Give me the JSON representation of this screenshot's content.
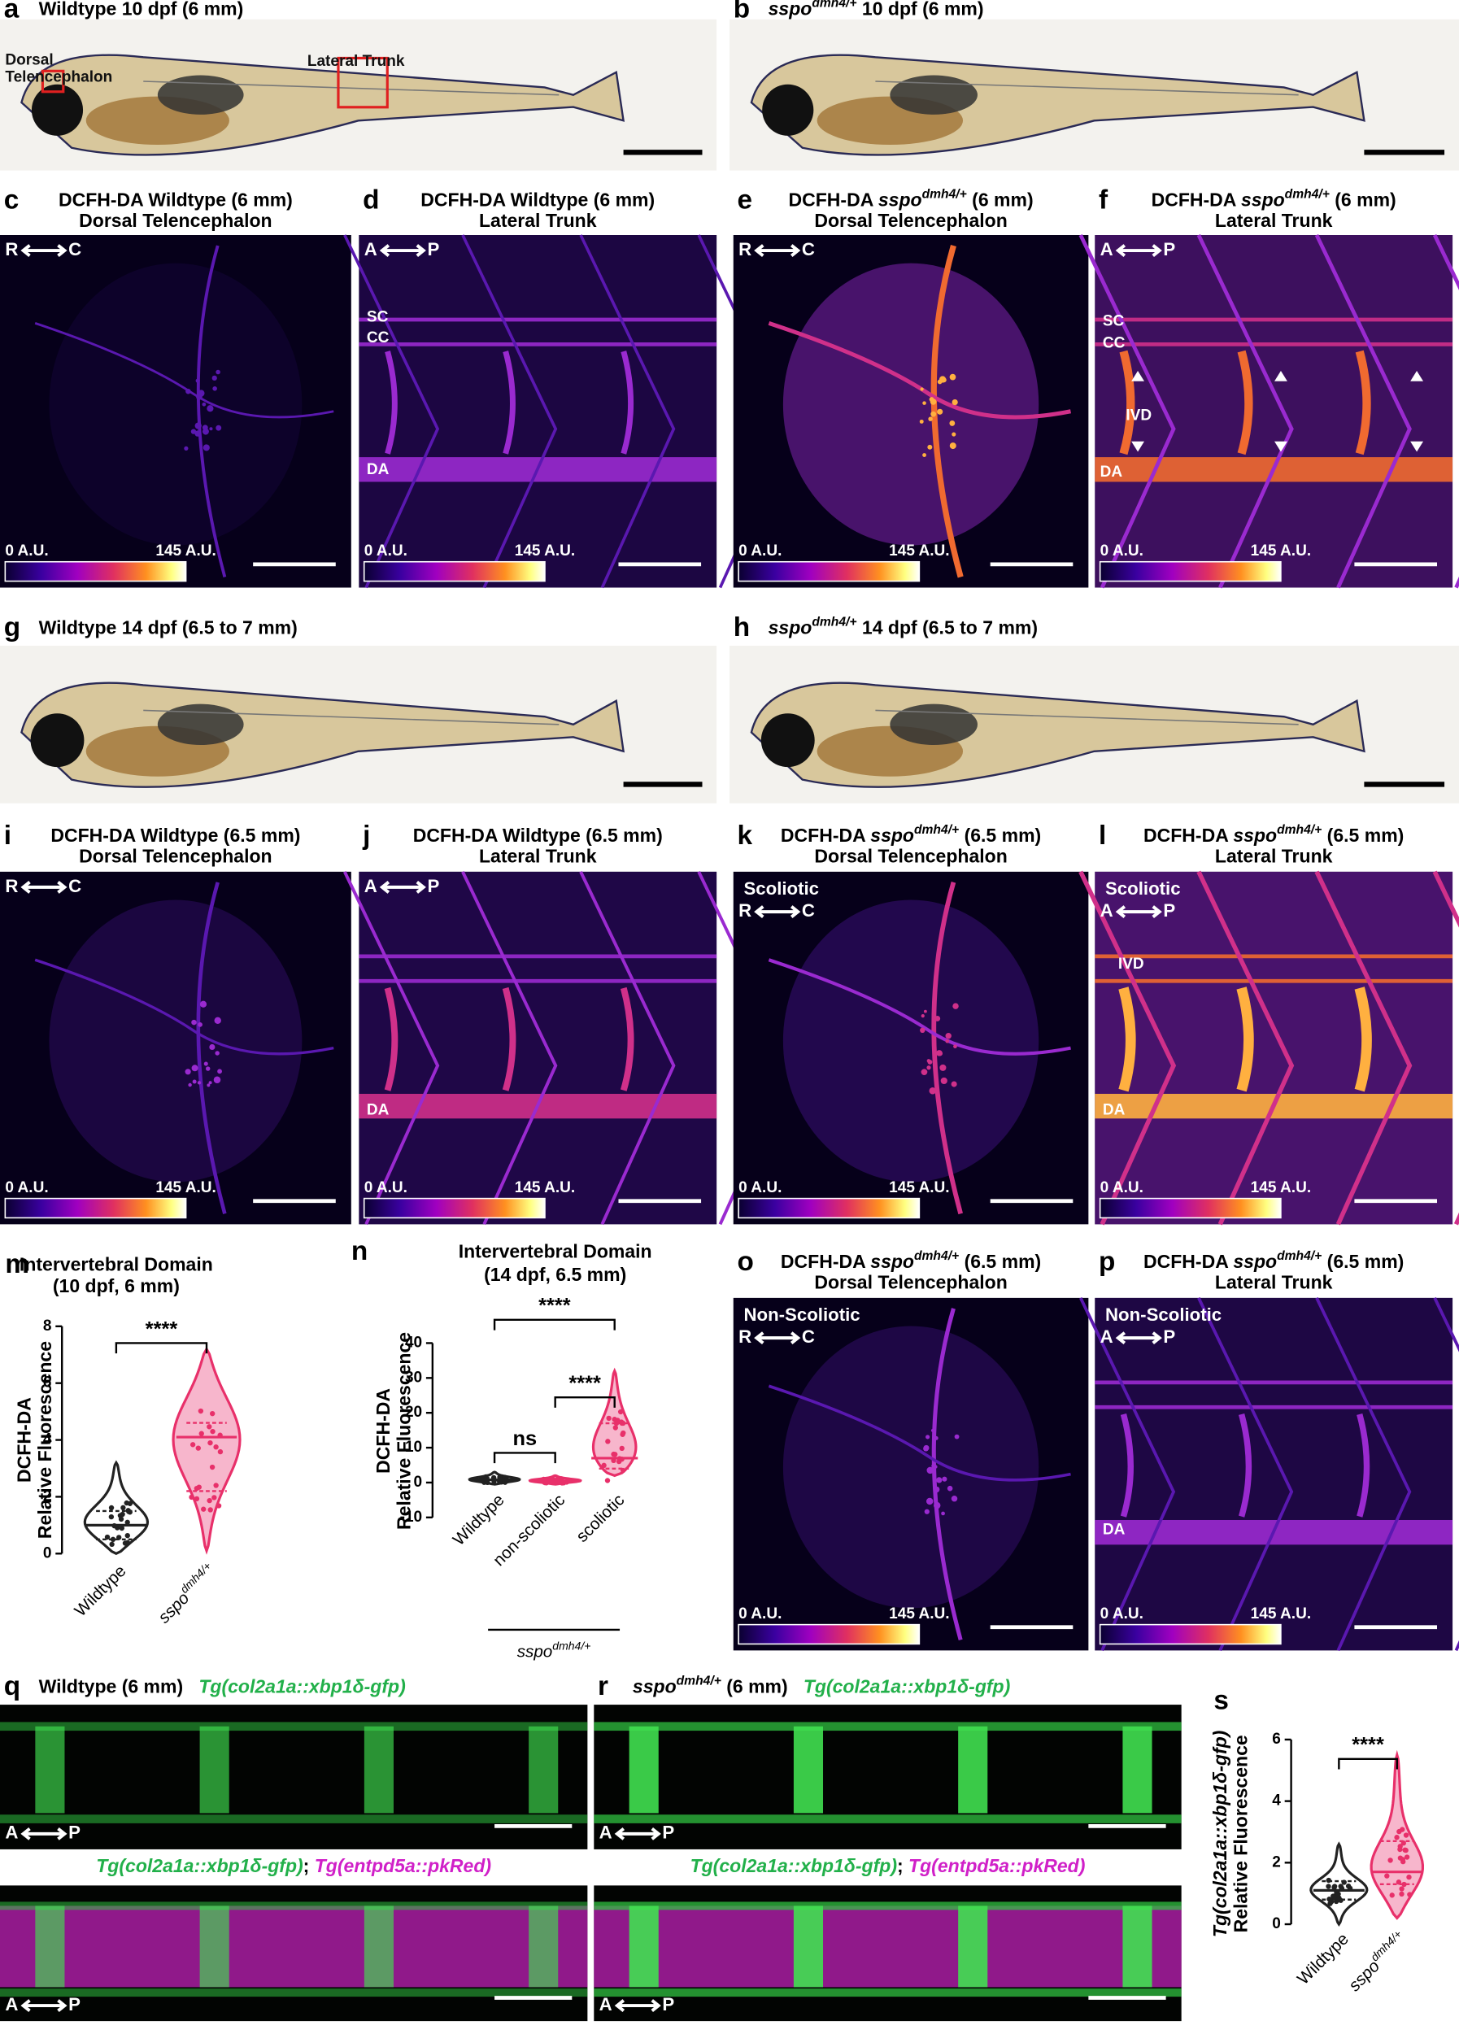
{
  "panels": [
    {
      "letter": "a",
      "title": [
        [
          {
            "text": "Wildtype 10 dpf (6 mm)"
          }
        ]
      ],
      "labels": [
        "Dorsal",
        "Telencephalon",
        "Lateral Trunk"
      ]
    },
    {
      "letter": "b",
      "title": [
        [
          {
            "text": "sspo",
            "style": "italic"
          },
          {
            "text": "dmh4/+",
            "style": "superscript"
          },
          {
            "text": " 10 dpf (6 mm)"
          }
        ]
      ]
    },
    {
      "letter": "c",
      "title": [
        [
          {
            "text": "DCFH-DA Wildtype (6 mm)"
          }
        ],
        [
          {
            "text": "Dorsal Telencephalon"
          }
        ]
      ],
      "orientation": [
        "R",
        "C"
      ],
      "colorbar": [
        "0 A.U.",
        "145 A.U."
      ]
    },
    {
      "letter": "d",
      "title": [
        [
          {
            "text": "DCFH-DA Wildtype (6 mm)"
          }
        ],
        [
          {
            "text": "Lateral Trunk"
          }
        ]
      ],
      "orientation": [
        "A",
        "P"
      ],
      "labels": [
        "SC",
        "CC",
        "DA"
      ],
      "colorbar": [
        "0 A.U.",
        "145 A.U."
      ]
    },
    {
      "letter": "e",
      "title": [
        [
          {
            "text": "DCFH-DA "
          },
          {
            "text": "sspo",
            "style": "italic"
          },
          {
            "text": "dmh4/+",
            "style": "superscript"
          },
          {
            "text": " (6 mm)"
          }
        ],
        [
          {
            "text": "Dorsal Telencephalon"
          }
        ]
      ],
      "orientation": [
        "R",
        "C"
      ],
      "colorbar": [
        "0 A.U.",
        "145 A.U."
      ]
    },
    {
      "letter": "f",
      "title": [
        [
          {
            "text": "DCFH-DA "
          },
          {
            "text": "sspo",
            "style": "italic"
          },
          {
            "text": "dmh4/+",
            "style": "superscript"
          },
          {
            "text": " (6 mm)"
          }
        ],
        [
          {
            "text": "Lateral Trunk"
          }
        ]
      ],
      "orientation": [
        "A",
        "P"
      ],
      "labels": [
        "SC",
        "CC",
        "IVD",
        "DA"
      ],
      "colorbar": [
        "0 A.U.",
        "145 A.U."
      ]
    },
    {
      "letter": "g",
      "title": [
        [
          {
            "text": "Wildtype 14 dpf (6.5 to 7 mm)"
          }
        ]
      ]
    },
    {
      "letter": "h",
      "title": [
        [
          {
            "text": "sspo",
            "style": "italic"
          },
          {
            "text": "dmh4/+",
            "style": "superscript"
          },
          {
            "text": " 14 dpf (6.5 to 7 mm)"
          }
        ]
      ]
    },
    {
      "letter": "i",
      "title": [
        [
          {
            "text": "DCFH-DA Wildtype (6.5 mm)"
          }
        ],
        [
          {
            "text": "Dorsal Telencephalon"
          }
        ]
      ],
      "orientation": [
        "R",
        "C"
      ],
      "colorbar": [
        "0 A.U.",
        "145 A.U."
      ]
    },
    {
      "letter": "j",
      "title": [
        [
          {
            "text": "DCFH-DA Wildtype (6.5 mm)"
          }
        ],
        [
          {
            "text": "Lateral Trunk"
          }
        ]
      ],
      "orientation": [
        "A",
        "P"
      ],
      "labels": [
        "DA"
      ],
      "colorbar": [
        "0 A.U.",
        "145 A.U."
      ]
    },
    {
      "letter": "k",
      "title": [
        [
          {
            "text": "DCFH-DA "
          },
          {
            "text": "sspo",
            "style": "italic"
          },
          {
            "text": "dmh4/+",
            "style": "superscript"
          },
          {
            "text": " (6.5 mm)"
          }
        ],
        [
          {
            "text": "Dorsal Telencephalon"
          }
        ]
      ],
      "condition": "Scoliotic",
      "orientation": [
        "R",
        "C"
      ],
      "colorbar": [
        "0 A.U.",
        "145 A.U."
      ]
    },
    {
      "letter": "l",
      "title": [
        [
          {
            "text": "DCFH-DA "
          },
          {
            "text": "sspo",
            "style": "italic"
          },
          {
            "text": "dmh4/+",
            "style": "superscript"
          },
          {
            "text": " (6.5 mm)"
          }
        ],
        [
          {
            "text": "Lateral Trunk"
          }
        ]
      ],
      "condition": "Scoliotic",
      "orientation": [
        "A",
        "P"
      ],
      "labels": [
        "IVD",
        "DA"
      ],
      "colorbar": [
        "0 A.U.",
        "145 A.U."
      ]
    },
    {
      "letter": "o",
      "title": [
        [
          {
            "text": "DCFH-DA "
          },
          {
            "text": "sspo",
            "style": "italic"
          },
          {
            "text": "dmh4/+",
            "style": "superscript"
          },
          {
            "text": " (6.5 mm)"
          }
        ],
        [
          {
            "text": "Dorsal Telencephalon"
          }
        ]
      ],
      "condition": "Non-Scoliotic",
      "orientation": [
        "R",
        "C"
      ],
      "colorbar": [
        "0 A.U.",
        "145 A.U."
      ]
    },
    {
      "letter": "p",
      "title": [
        [
          {
            "text": "DCFH-DA "
          },
          {
            "text": "sspo",
            "style": "italic"
          },
          {
            "text": "dmh4/+",
            "style": "superscript"
          },
          {
            "text": " (6.5 mm)"
          }
        ],
        [
          {
            "text": "Lateral Trunk"
          }
        ]
      ],
      "condition": "Non-Scoliotic",
      "orientation": [
        "A",
        "P"
      ],
      "labels": [
        "DA"
      ],
      "colorbar": [
        "0 A.U.",
        "145 A.U."
      ]
    },
    {
      "letter": "q",
      "title": [
        [
          {
            "text": "Wildtype (6 mm)   "
          },
          {
            "text": "Tg(col2a1a::xbp1δ-gfp)",
            "style": "italic",
            "color": "#22b04a"
          }
        ]
      ],
      "views": [
        {
          "orientation": [
            "A",
            "P"
          ]
        },
        {
          "caption": [
            {
              "text": "Tg(col2a1a::xbp1δ-gfp)",
              "style": "italic",
              "color": "#22b04a"
            },
            {
              "text": "; "
            },
            {
              "text": "Tg(entpd5a::pkRed)",
              "style": "italic",
              "color": "#d020c8"
            }
          ],
          "orientation": [
            "A",
            "P"
          ]
        }
      ]
    },
    {
      "letter": "r",
      "title": [
        [
          {
            "text": "sspo",
            "style": "italic"
          },
          {
            "text": "dmh4/+",
            "style": "superscript"
          },
          {
            "text": " (6 mm)   "
          },
          {
            "text": "Tg(col2a1a::xbp1δ-gfp)",
            "style": "italic",
            "color": "#22b04a"
          }
        ]
      ],
      "views": [
        {
          "orientation": [
            "A",
            "P"
          ]
        },
        {
          "caption": [
            {
              "text": "Tg(col2a1a::xbp1δ-gfp)",
              "style": "italic",
              "color": "#22b04a"
            },
            {
              "text": "; "
            },
            {
              "text": "Tg(entpd5a::pkRed)",
              "style": "italic",
              "color": "#d020c8"
            }
          ],
          "orientation": [
            "A",
            "P"
          ]
        }
      ]
    }
  ],
  "chart_data": [
    {
      "type": "violin",
      "letter": "m",
      "title": [
        "Intervertebral Domain",
        "(10 dpf, 6 mm)"
      ],
      "ylabel": [
        [
          {
            "text": "DCFH-DA"
          }
        ],
        [
          {
            "text": "Relative Fluorescence"
          }
        ]
      ],
      "categories": [
        [
          {
            "text": "Wildtype"
          }
        ],
        [
          {
            "text": "sspo",
            "style": "italic"
          },
          {
            "text": "dmh4/+",
            "style": "superscript"
          }
        ]
      ],
      "series": [
        {
          "color": "#222222",
          "fill": "#ffffff",
          "min": 0,
          "q1": 0.5,
          "median": 1.0,
          "q3": 1.5,
          "max": 3.2
        },
        {
          "color": "#e8306a",
          "fill": "#f7b6cc",
          "min": 0.1,
          "q1": 2.2,
          "median": 4.1,
          "q3": 4.6,
          "max": 7.2
        }
      ],
      "ylim": [
        0,
        8
      ],
      "yticks": [
        0,
        2,
        4,
        6,
        8
      ],
      "comparisons": [
        {
          "from": 0,
          "to": 1,
          "label": "****"
        }
      ]
    },
    {
      "type": "violin",
      "letter": "n",
      "title": [
        "Intervertebral Domain",
        "(14 dpf, 6.5 mm)"
      ],
      "ylabel": [
        [
          {
            "text": "DCFH-DA"
          }
        ],
        [
          {
            "text": "Relative Fluorescence"
          }
        ]
      ],
      "categories": [
        [
          {
            "text": "Wildtype"
          }
        ],
        [
          {
            "text": "non-scoliotic"
          }
        ],
        [
          {
            "text": "scoliotic"
          }
        ]
      ],
      "series": [
        {
          "color": "#222222",
          "fill": "#ffffff",
          "min": -0.5,
          "q1": 0.3,
          "median": 0.8,
          "q3": 1.4,
          "max": 3
        },
        {
          "color": "#e8306a",
          "fill": "#f7b6cc",
          "min": -0.5,
          "q1": 0.1,
          "median": 0.5,
          "q3": 0.9,
          "max": 2
        },
        {
          "color": "#e8306a",
          "fill": "#f7b6cc",
          "min": 2,
          "q1": 4,
          "median": 7,
          "q3": 17,
          "max": 32
        }
      ],
      "ylim": [
        -10,
        40
      ],
      "yticks": [
        -10,
        0,
        10,
        20,
        30,
        40
      ],
      "comparisons": [
        {
          "from": 0,
          "to": 1,
          "label": "ns"
        },
        {
          "from": 0,
          "to": 2,
          "label": "****"
        },
        {
          "from": 1,
          "to": 2,
          "label": "****"
        }
      ],
      "group_label": {
        "runs": [
          {
            "text": "sspo",
            "style": "italic"
          },
          {
            "text": "dmh4/+",
            "style": "superscript"
          }
        ],
        "from": 1,
        "to": 2
      }
    },
    {
      "type": "violin",
      "letter": "s",
      "ylabel": [
        [
          {
            "text": "Tg(col2a1a::xbp1δ-gfp)",
            "style": "italic"
          }
        ],
        [
          {
            "text": "Relative Fluorescence"
          }
        ]
      ],
      "categories": [
        [
          {
            "text": "Wildtype"
          }
        ],
        [
          {
            "text": "sspo",
            "style": "italic"
          },
          {
            "text": "dmh4/+",
            "style": "superscript"
          }
        ]
      ],
      "series": [
        {
          "color": "#222222",
          "fill": "#ffffff",
          "min": 0,
          "q1": 0.8,
          "median": 1.1,
          "q3": 1.4,
          "max": 2.6
        },
        {
          "color": "#e8306a",
          "fill": "#f7b6cc",
          "min": 0.2,
          "q1": 1.3,
          "median": 1.7,
          "q3": 2.7,
          "max": 5.5
        }
      ],
      "ylim": [
        0,
        6
      ],
      "yticks": [
        0,
        2,
        4,
        6
      ],
      "comparisons": [
        {
          "from": 0,
          "to": 1,
          "label": "****"
        }
      ]
    }
  ]
}
